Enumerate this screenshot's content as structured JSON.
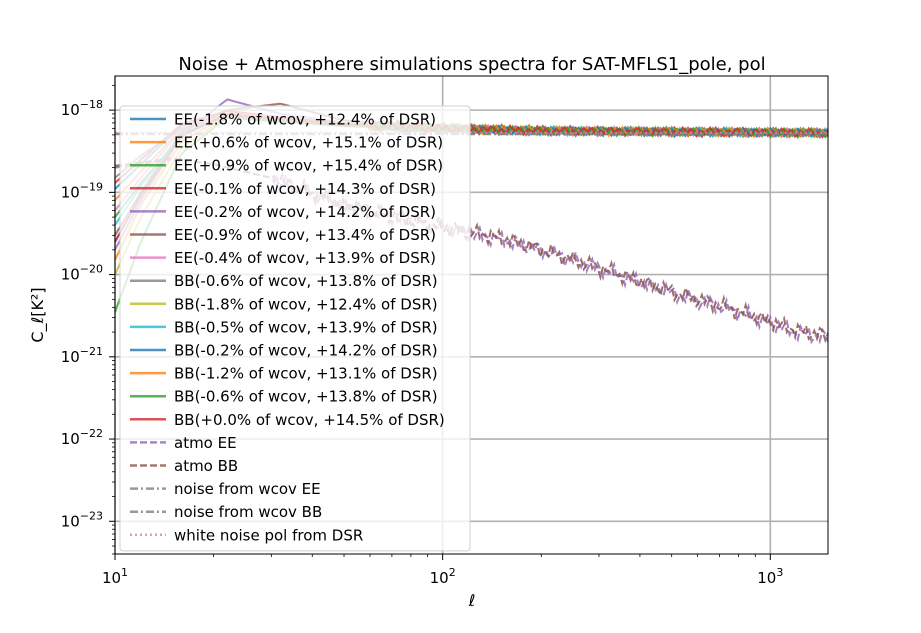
{
  "chart_data": {
    "type": "line",
    "title": "Noise + Atmosphere simulations spectra for SAT-MFLS1_pole, pol",
    "xlabel": "ℓ",
    "ylabel": "C_ℓ[K²]",
    "xscale": "log",
    "yscale": "log",
    "xlim": [
      10,
      1500
    ],
    "ylim": [
      4e-24,
      2.6e-18
    ],
    "grid": true,
    "legend_position": "upper-left",
    "xticks": [
      {
        "value": 10,
        "base": "10",
        "exp": "1"
      },
      {
        "value": 100,
        "base": "10",
        "exp": "2"
      },
      {
        "value": 1000,
        "base": "10",
        "exp": "3"
      }
    ],
    "yticks": [
      {
        "value": 1e-23,
        "base": "10",
        "exp": "−23"
      },
      {
        "value": 1e-22,
        "base": "10",
        "exp": "−22"
      },
      {
        "value": 1e-21,
        "base": "10",
        "exp": "−21"
      },
      {
        "value": 1e-20,
        "base": "10",
        "exp": "−20"
      },
      {
        "value": 1e-19,
        "base": "10",
        "exp": "−19"
      },
      {
        "value": 1e-18,
        "base": "10",
        "exp": "−18"
      }
    ],
    "series": [
      {
        "name": "EE(-1.8% of wcov, +12.4% of DSR)",
        "color": "#1f77b4",
        "style": "solid",
        "x": [
          10,
          12,
          16,
          22,
          32,
          50,
          80,
          120,
          200,
          400,
          800,
          1500
        ],
        "y": [
          1.1e-19,
          2.2e-19,
          6.5e-19,
          8.8e-19,
          7.5e-19,
          6.5e-19,
          6e-19,
          5.8e-19,
          5.5e-19,
          5.4e-19,
          5.3e-19,
          5.2e-19
        ]
      },
      {
        "name": "EE(+0.6% of wcov, +15.1% of DSR)",
        "color": "#ff7f0e",
        "style": "solid",
        "x": [
          10,
          12,
          16,
          22,
          32,
          50,
          80,
          120,
          200,
          400,
          800,
          1500
        ],
        "y": [
          8e-20,
          1.8e-19,
          6e-19,
          9.5e-19,
          8e-19,
          6.8e-19,
          6.2e-19,
          5.9e-19,
          5.6e-19,
          5.5e-19,
          5.4e-19,
          5.3e-19
        ]
      },
      {
        "name": "EE(+0.9% of wcov, +15.4% of DSR)",
        "color": "#2ca02c",
        "style": "solid",
        "x": [
          10,
          12,
          16,
          22,
          32,
          50,
          80,
          120,
          200,
          400,
          800,
          1500
        ],
        "y": [
          5e-20,
          1.3e-19,
          5e-19,
          9e-19,
          7.8e-19,
          6.6e-19,
          6.1e-19,
          5.9e-19,
          5.6e-19,
          5.5e-19,
          5.4e-19,
          5.3e-19
        ]
      },
      {
        "name": "EE(-0.1% of wcov, +14.3% of DSR)",
        "color": "#d62728",
        "style": "solid",
        "x": [
          10,
          12,
          16,
          22,
          32,
          50,
          80,
          120,
          200,
          400,
          800,
          1500
        ],
        "y": [
          1.3e-19,
          2.5e-19,
          6.8e-19,
          9.8e-19,
          8.2e-19,
          6.9e-19,
          6.3e-19,
          6e-19,
          5.7e-19,
          5.5e-19,
          5.4e-19,
          5.3e-19
        ]
      },
      {
        "name": "EE(-0.2% of wcov, +14.2% of DSR)",
        "color": "#9467bd",
        "style": "solid",
        "x": [
          10,
          12,
          16,
          22,
          32,
          50,
          80,
          120,
          200,
          400,
          800,
          1500
        ],
        "y": [
          2e-20,
          8e-20,
          5e-19,
          1.35e-18,
          9e-19,
          7e-19,
          6.2e-19,
          5.9e-19,
          5.6e-19,
          5.5e-19,
          5.4e-19,
          5.3e-19
        ]
      },
      {
        "name": "EE(-0.9% of wcov, +13.4% of DSR)",
        "color": "#8c564b",
        "style": "solid",
        "x": [
          10,
          12,
          16,
          22,
          32,
          50,
          80,
          120,
          200,
          400,
          800,
          1500
        ],
        "y": [
          3e-20,
          1e-19,
          5.5e-19,
          1e-18,
          1.2e-18,
          7.5e-19,
          6.4e-19,
          6e-19,
          5.7e-19,
          5.5e-19,
          5.4e-19,
          5.3e-19
        ]
      },
      {
        "name": "EE(-0.4% of wcov, +13.9% of DSR)",
        "color": "#e377c2",
        "style": "solid",
        "x": [
          10,
          12,
          16,
          22,
          32,
          50,
          80,
          120,
          200,
          400,
          800,
          1500
        ],
        "y": [
          6e-20,
          1.5e-19,
          5.8e-19,
          9.2e-19,
          7.9e-19,
          6.7e-19,
          6.1e-19,
          5.9e-19,
          5.6e-19,
          5.5e-19,
          5.4e-19,
          5.3e-19
        ]
      },
      {
        "name": "BB(-0.6% of wcov, +13.8% of DSR)",
        "color": "#7f7f7f",
        "style": "solid",
        "x": [
          10,
          12,
          16,
          22,
          32,
          50,
          80,
          120,
          200,
          400,
          800,
          1500
        ],
        "y": [
          1.5e-19,
          2.8e-19,
          6e-19,
          8e-19,
          7.2e-19,
          6.4e-19,
          6e-19,
          5.8e-19,
          5.5e-19,
          5.4e-19,
          5.3e-19,
          5.2e-19
        ]
      },
      {
        "name": "BB(-1.8% of wcov, +12.4% of DSR)",
        "color": "#bcbd22",
        "style": "solid",
        "x": [
          10,
          12,
          16,
          22,
          32,
          50,
          80,
          120,
          200,
          400,
          800,
          1500
        ],
        "y": [
          1e-20,
          5e-20,
          3.5e-19,
          8.5e-19,
          7.6e-19,
          6.6e-19,
          6.1e-19,
          5.9e-19,
          5.7e-19,
          5.5e-19,
          5.4e-19,
          5.3e-19
        ]
      },
      {
        "name": "BB(-0.5% of wcov, +13.9% of DSR)",
        "color": "#17becf",
        "style": "solid",
        "x": [
          10,
          12,
          16,
          22,
          32,
          50,
          80,
          120,
          200,
          400,
          800,
          1500
        ],
        "y": [
          4e-20,
          1.2e-19,
          5.2e-19,
          8.7e-19,
          7.7e-19,
          6.6e-19,
          6.1e-19,
          5.9e-19,
          5.6e-19,
          5.5e-19,
          5.4e-19,
          5.3e-19
        ]
      },
      {
        "name": "BB(-0.2% of wcov, +14.2% of DSR)",
        "color": "#1f77b4",
        "style": "solid",
        "x": [
          10,
          12,
          16,
          22,
          32,
          50,
          80,
          120,
          200,
          400,
          800,
          1500
        ],
        "y": [
          2.5e-20,
          9e-20,
          4.8e-19,
          8.9e-19,
          7.8e-19,
          6.7e-19,
          6.1e-19,
          5.9e-19,
          5.6e-19,
          5.5e-19,
          5.4e-19,
          5.3e-19
        ]
      },
      {
        "name": "BB(-1.2% of wcov, +13.1% of DSR)",
        "color": "#ff7f0e",
        "style": "solid",
        "x": [
          10,
          12,
          16,
          22,
          32,
          50,
          80,
          120,
          200,
          400,
          800,
          1500
        ],
        "y": [
          1.5e-20,
          7e-20,
          4.2e-19,
          8.6e-19,
          7.6e-19,
          6.6e-19,
          6.1e-19,
          5.9e-19,
          5.6e-19,
          5.5e-19,
          5.4e-19,
          5.3e-19
        ]
      },
      {
        "name": "BB(-0.6% of wcov, +13.8% of DSR)",
        "color": "#2ca02c",
        "style": "solid",
        "x": [
          10,
          12,
          16,
          22,
          32,
          50,
          80,
          120,
          200,
          400,
          800,
          1500
        ],
        "y": [
          3.5e-21,
          2.5e-20,
          3e-19,
          8.2e-19,
          7.4e-19,
          6.5e-19,
          6e-19,
          5.8e-19,
          5.6e-19,
          5.5e-19,
          5.4e-19,
          5.3e-19
        ]
      },
      {
        "name": "BB(+0.0% of wcov, +14.5% of DSR)",
        "color": "#d62728",
        "style": "solid",
        "x": [
          10,
          12,
          16,
          22,
          32,
          50,
          80,
          120,
          200,
          400,
          800,
          1500
        ],
        "y": [
          2.5e-20,
          9.5e-20,
          5e-19,
          8.8e-19,
          7.8e-19,
          6.7e-19,
          6.2e-19,
          5.9e-19,
          5.6e-19,
          5.5e-19,
          5.4e-19,
          5.3e-19
        ]
      },
      {
        "name": "atmo EE",
        "color": "#9467bd",
        "style": "dashed",
        "x": [
          10,
          15,
          20,
          30,
          50,
          80,
          120,
          150,
          200,
          300,
          500,
          800,
          1200,
          1500
        ],
        "y": [
          2e-19,
          2.5e-19,
          2.2e-19,
          1.5e-19,
          7e-20,
          4.5e-20,
          3.2e-20,
          2.7e-20,
          2e-20,
          1.2e-20,
          6e-21,
          3.5e-21,
          2e-21,
          1.7e-21
        ]
      },
      {
        "name": "atmo BB",
        "color": "#8c564b",
        "style": "dashed",
        "x": [
          10,
          15,
          20,
          30,
          50,
          80,
          120,
          150,
          200,
          300,
          500,
          800,
          1200,
          1500
        ],
        "y": [
          2.1e-19,
          2.6e-19,
          2.2e-19,
          1.5e-19,
          7e-20,
          4.5e-20,
          3.3e-20,
          2.8e-20,
          2e-20,
          1.2e-20,
          6.2e-21,
          3.6e-21,
          2.1e-21,
          1.8e-21
        ]
      },
      {
        "name": "noise from wcov EE",
        "color": "#7f7f7f",
        "style": "dashdot",
        "x": [
          10,
          1500
        ],
        "y": [
          5.2e-19,
          5.2e-19
        ]
      },
      {
        "name": "noise from wcov BB",
        "color": "#7f7f7f",
        "style": "dashdot",
        "x": [
          10,
          1500
        ],
        "y": [
          5.1e-19,
          5.1e-19
        ]
      },
      {
        "name": "white noise pol from DSR",
        "color": "#e377c2",
        "style": "dotted",
        "x": [
          10,
          1500
        ],
        "y": [
          5.3e-19,
          5.3e-19
        ]
      }
    ]
  }
}
